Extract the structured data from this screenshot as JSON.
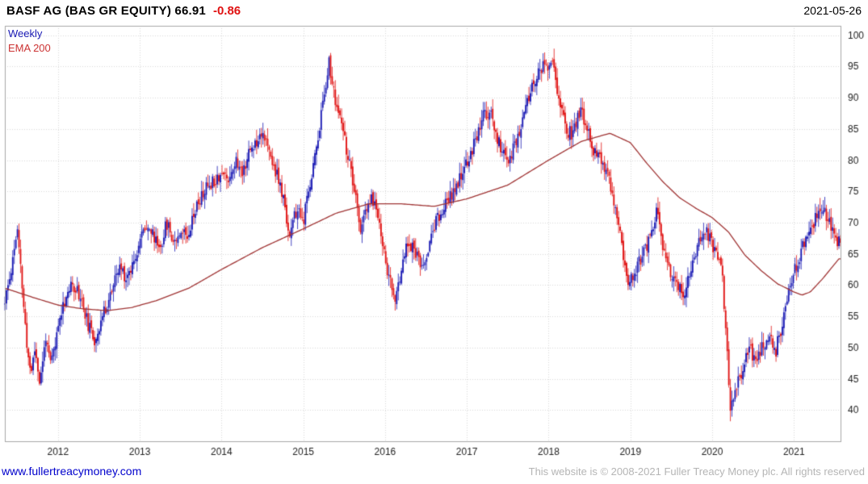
{
  "header": {
    "title": "BASF AG (BAS GR EQUITY) 66.91",
    "change": "-0.86",
    "date": "2021-05-26"
  },
  "legend": {
    "series1": "Weekly",
    "series2": "EMA 200"
  },
  "footer": {
    "link": "www.fullertreacymoney.com",
    "copyright": "This website is © 2008-2021 Fuller Treacy Money plc. All rights reserved"
  },
  "colors": {
    "up": "#1a1ab4",
    "down": "#e01212",
    "ema": "#a03434",
    "grid": "#d9d9d9",
    "border": "#a8a8a8",
    "change": "#e01212",
    "legend_weekly": "#1a1ab4",
    "legend_ema": "#cc3333",
    "link": "#0000cc",
    "copyright": "#b5b5b5",
    "axis_text": "#222222"
  },
  "chart_data": {
    "type": "candlestick",
    "title": "BASF AG (BAS GR EQUITY)",
    "last_price": 66.91,
    "change": -0.86,
    "interval": "Weekly",
    "overlay": "EMA 200",
    "x_range": [
      2011.35,
      2021.57
    ],
    "y_range": [
      35,
      101.5
    ],
    "y_ticks": [
      40,
      45,
      50,
      55,
      60,
      65,
      70,
      75,
      80,
      85,
      90,
      95,
      100
    ],
    "x_ticks": [
      2012,
      2013,
      2014,
      2015,
      2016,
      2017,
      2018,
      2019,
      2020,
      2021
    ],
    "weeks_per_year": 52,
    "noise_seed": 11,
    "price_keyframes": [
      [
        2011.35,
        57
      ],
      [
        2011.42,
        62
      ],
      [
        2011.5,
        69
      ],
      [
        2011.56,
        60
      ],
      [
        2011.62,
        50
      ],
      [
        2011.67,
        46
      ],
      [
        2011.72,
        50
      ],
      [
        2011.78,
        44
      ],
      [
        2011.85,
        52
      ],
      [
        2011.9,
        47
      ],
      [
        2011.96,
        50
      ],
      [
        2012.04,
        56
      ],
      [
        2012.12,
        59
      ],
      [
        2012.2,
        60
      ],
      [
        2012.28,
        58
      ],
      [
        2012.36,
        54
      ],
      [
        2012.44,
        51
      ],
      [
        2012.52,
        54
      ],
      [
        2012.6,
        57
      ],
      [
        2012.68,
        60
      ],
      [
        2012.76,
        63
      ],
      [
        2012.84,
        61
      ],
      [
        2012.92,
        64
      ],
      [
        2013.0,
        67
      ],
      [
        2013.08,
        70
      ],
      [
        2013.16,
        68
      ],
      [
        2013.25,
        66
      ],
      [
        2013.33,
        70
      ],
      [
        2013.42,
        67
      ],
      [
        2013.5,
        69
      ],
      [
        2013.58,
        68
      ],
      [
        2013.67,
        72
      ],
      [
        2013.75,
        74
      ],
      [
        2013.83,
        76
      ],
      [
        2013.92,
        77
      ],
      [
        2014.0,
        78
      ],
      [
        2014.08,
        77
      ],
      [
        2014.17,
        80
      ],
      [
        2014.25,
        78
      ],
      [
        2014.33,
        81
      ],
      [
        2014.42,
        83
      ],
      [
        2014.5,
        85
      ],
      [
        2014.58,
        81
      ],
      [
        2014.67,
        78
      ],
      [
        2014.75,
        74
      ],
      [
        2014.83,
        68
      ],
      [
        2014.92,
        72
      ],
      [
        2015.0,
        70
      ],
      [
        2015.08,
        76
      ],
      [
        2015.17,
        83
      ],
      [
        2015.25,
        90
      ],
      [
        2015.31,
        96
      ],
      [
        2015.38,
        90
      ],
      [
        2015.46,
        86
      ],
      [
        2015.54,
        81
      ],
      [
        2015.62,
        75
      ],
      [
        2015.7,
        69
      ],
      [
        2015.78,
        72
      ],
      [
        2015.84,
        74
      ],
      [
        2015.92,
        71
      ],
      [
        2016.0,
        64
      ],
      [
        2016.07,
        60
      ],
      [
        2016.13,
        57
      ],
      [
        2016.21,
        64
      ],
      [
        2016.29,
        67
      ],
      [
        2016.38,
        65
      ],
      [
        2016.46,
        62
      ],
      [
        2016.54,
        67
      ],
      [
        2016.62,
        70
      ],
      [
        2016.71,
        72
      ],
      [
        2016.79,
        74
      ],
      [
        2016.88,
        76
      ],
      [
        2016.96,
        78
      ],
      [
        2017.04,
        81
      ],
      [
        2017.12,
        84
      ],
      [
        2017.2,
        87
      ],
      [
        2017.28,
        88
      ],
      [
        2017.36,
        84
      ],
      [
        2017.44,
        81
      ],
      [
        2017.52,
        80
      ],
      [
        2017.6,
        83
      ],
      [
        2017.68,
        86
      ],
      [
        2017.76,
        90
      ],
      [
        2017.84,
        93
      ],
      [
        2017.92,
        95
      ],
      [
        2018.0,
        94
      ],
      [
        2018.05,
        97
      ],
      [
        2018.13,
        89
      ],
      [
        2018.21,
        85
      ],
      [
        2018.29,
        84
      ],
      [
        2018.38,
        88
      ],
      [
        2018.46,
        86
      ],
      [
        2018.54,
        82
      ],
      [
        2018.62,
        80
      ],
      [
        2018.71,
        78
      ],
      [
        2018.79,
        74
      ],
      [
        2018.88,
        68
      ],
      [
        2018.96,
        61
      ],
      [
        2019.04,
        61
      ],
      [
        2019.12,
        64
      ],
      [
        2019.2,
        66
      ],
      [
        2019.28,
        70
      ],
      [
        2019.33,
        72
      ],
      [
        2019.42,
        64
      ],
      [
        2019.5,
        62
      ],
      [
        2019.58,
        60
      ],
      [
        2019.65,
        58
      ],
      [
        2019.73,
        62
      ],
      [
        2019.81,
        66
      ],
      [
        2019.89,
        69
      ],
      [
        2019.96,
        68
      ],
      [
        2020.04,
        65
      ],
      [
        2020.12,
        62
      ],
      [
        2020.18,
        50
      ],
      [
        2020.22,
        39
      ],
      [
        2020.29,
        44
      ],
      [
        2020.37,
        46
      ],
      [
        2020.45,
        50
      ],
      [
        2020.53,
        48
      ],
      [
        2020.61,
        50
      ],
      [
        2020.69,
        52
      ],
      [
        2020.77,
        49
      ],
      [
        2020.84,
        53
      ],
      [
        2020.92,
        58
      ],
      [
        2021.0,
        62
      ],
      [
        2021.08,
        65
      ],
      [
        2021.16,
        68
      ],
      [
        2021.24,
        70
      ],
      [
        2021.32,
        72
      ],
      [
        2021.4,
        71
      ],
      [
        2021.48,
        68
      ],
      [
        2021.55,
        67
      ]
    ],
    "ema_keyframes": [
      [
        2011.35,
        59.5
      ],
      [
        2011.7,
        58
      ],
      [
        2012.0,
        56.8
      ],
      [
        2012.3,
        56.2
      ],
      [
        2012.6,
        55.9
      ],
      [
        2012.9,
        56.4
      ],
      [
        2013.2,
        57.5
      ],
      [
        2013.6,
        59.5
      ],
      [
        2014.0,
        62.5
      ],
      [
        2014.5,
        66
      ],
      [
        2015.0,
        69
      ],
      [
        2015.4,
        71.5
      ],
      [
        2015.8,
        73
      ],
      [
        2016.2,
        73
      ],
      [
        2016.6,
        72.6
      ],
      [
        2017.0,
        73.8
      ],
      [
        2017.5,
        76
      ],
      [
        2018.0,
        80
      ],
      [
        2018.4,
        83
      ],
      [
        2018.75,
        84.3
      ],
      [
        2019.0,
        82.8
      ],
      [
        2019.2,
        79.5
      ],
      [
        2019.4,
        76.5
      ],
      [
        2019.6,
        74
      ],
      [
        2019.8,
        72.3
      ],
      [
        2020.0,
        70.8
      ],
      [
        2020.2,
        68.5
      ],
      [
        2020.4,
        64.8
      ],
      [
        2020.6,
        62.3
      ],
      [
        2020.8,
        60.2
      ],
      [
        2021.0,
        58.9
      ],
      [
        2021.1,
        58.4
      ],
      [
        2021.2,
        58.9
      ],
      [
        2021.35,
        61
      ],
      [
        2021.55,
        64.2
      ]
    ]
  }
}
